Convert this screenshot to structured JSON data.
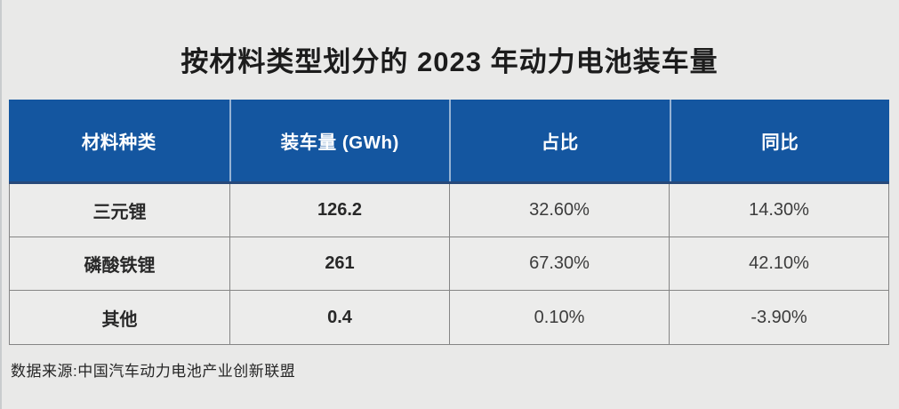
{
  "page": {
    "title": "按材料类型划分的 2023 年动力电池装车量",
    "source_note": "数据来源:中国汽车动力电池产业创新联盟"
  },
  "colors": {
    "header_bg": "#1456a0",
    "header_text": "#ffffff",
    "page_bg": "#e9e9e8",
    "cell_bg": "#ececeb",
    "grid_border": "#858585",
    "title_text": "#1c1c1c"
  },
  "table": {
    "columns": [
      "材料种类",
      "装车量 (GWh)",
      "占比",
      "同比"
    ],
    "rows": [
      {
        "material": "三元锂",
        "volume": "126.2",
        "share": "32.60%",
        "yoy": "14.30%"
      },
      {
        "material": "磷酸铁锂",
        "volume": "261",
        "share": "67.30%",
        "yoy": "42.10%"
      },
      {
        "material": "其他",
        "volume": "0.4",
        "share": "0.10%",
        "yoy": "-3.90%"
      }
    ]
  },
  "chart_data": {
    "type": "table",
    "title": "按材料类型划分的 2023 年动力电池装车量",
    "columns": [
      "材料种类",
      "装车量 (GWh)",
      "占比",
      "同比"
    ],
    "rows": [
      [
        "三元锂",
        126.2,
        "32.60%",
        "14.30%"
      ],
      [
        "磷酸铁锂",
        261,
        "67.30%",
        "42.10%"
      ],
      [
        "其他",
        0.4,
        "0.10%",
        "-3.90%"
      ]
    ],
    "source": "数据来源:中国汽车动力电池产业创新联盟"
  }
}
